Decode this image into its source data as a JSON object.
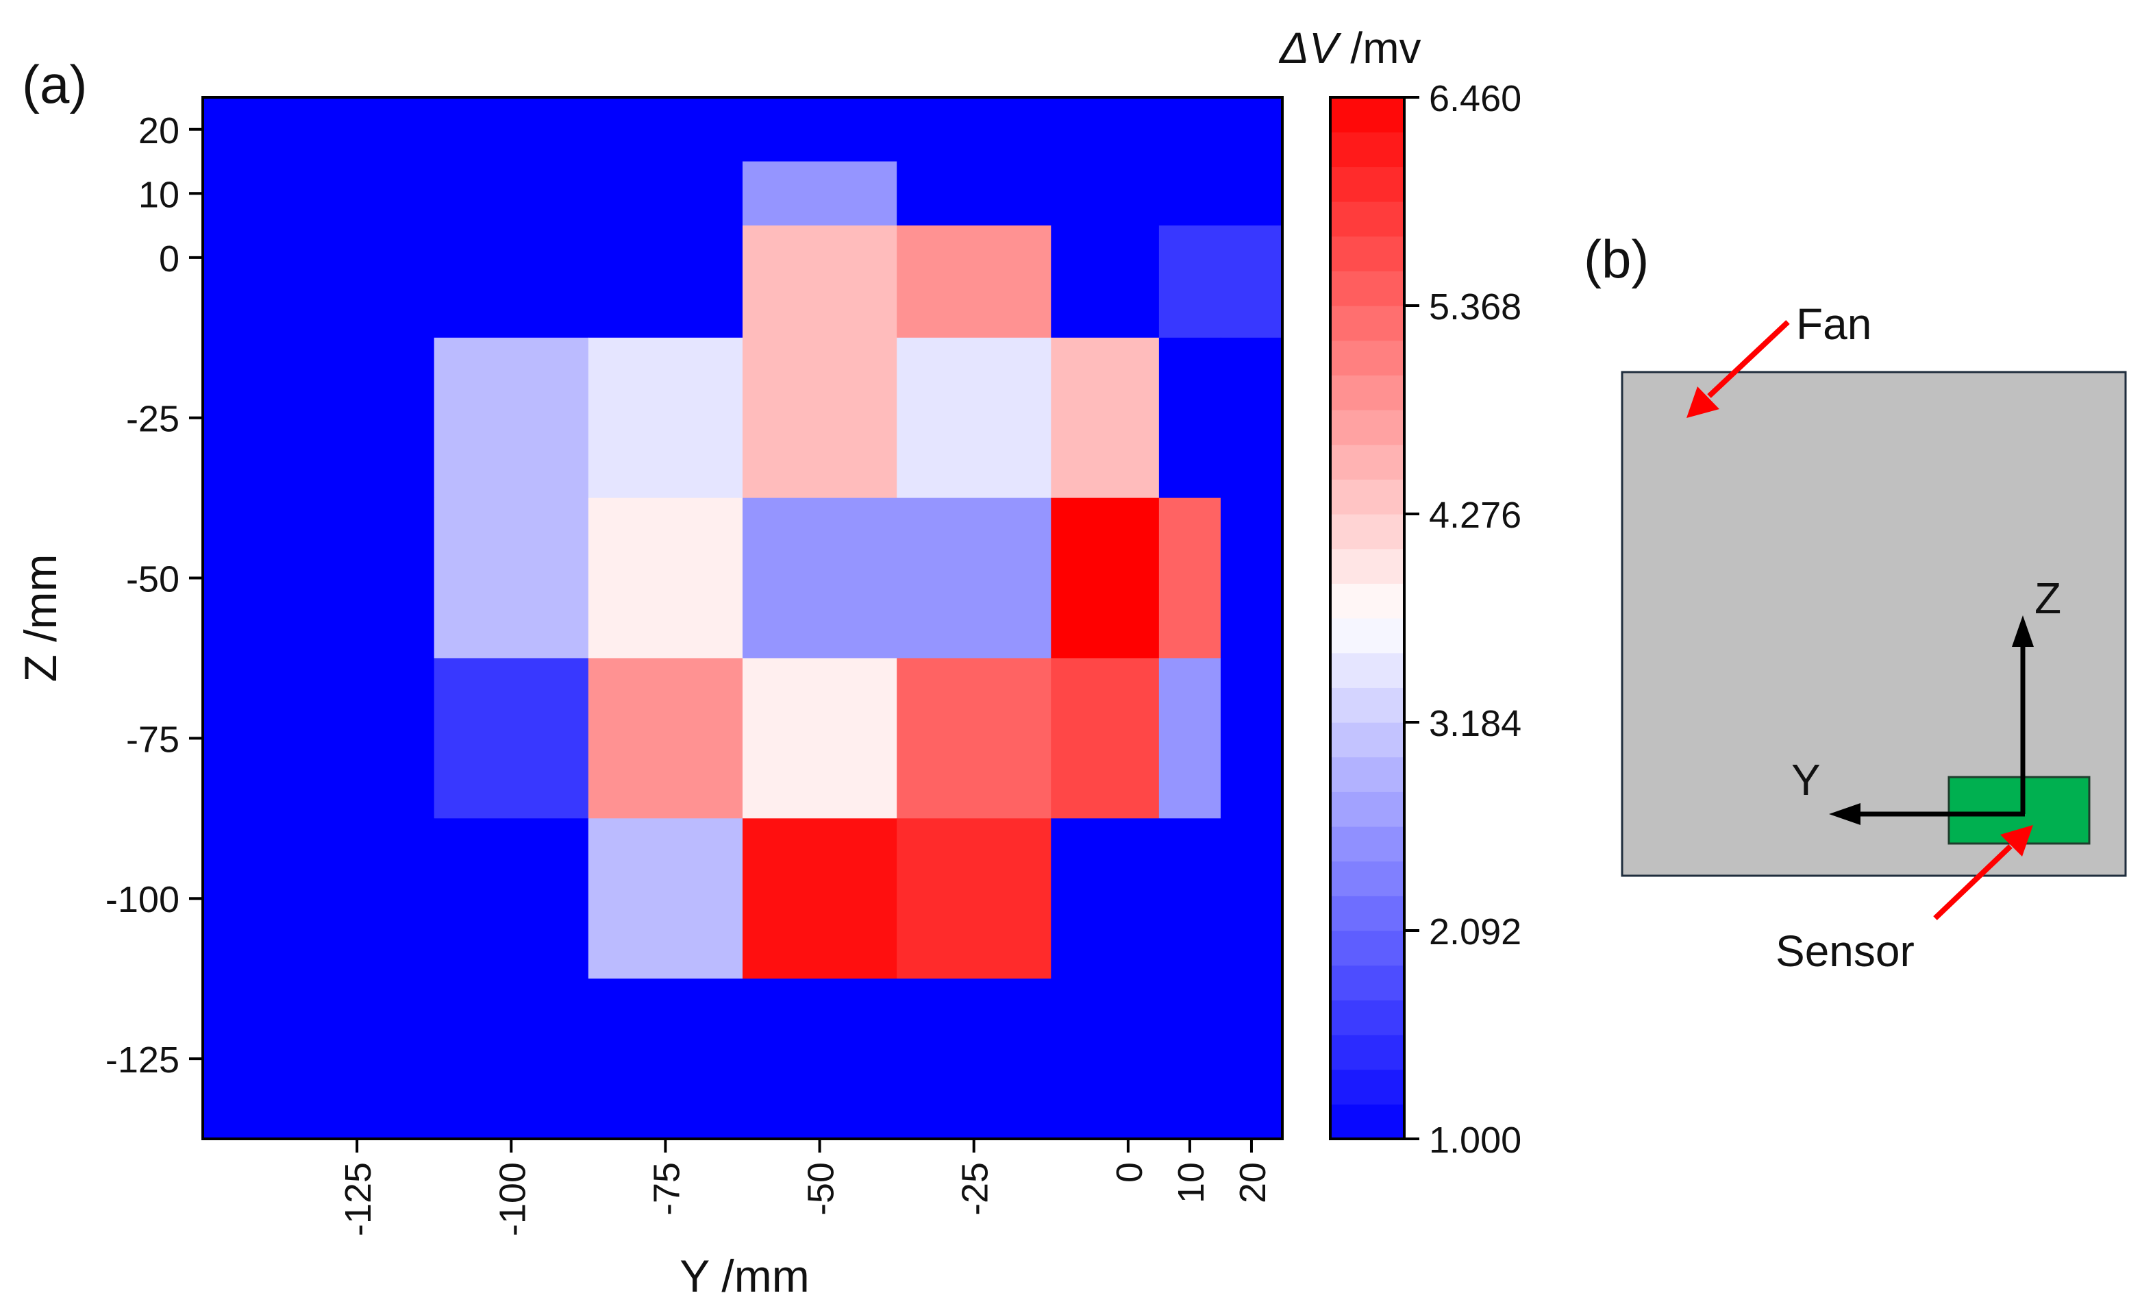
{
  "panel_a_label": "(a)",
  "panel_b_label": "(b)",
  "chart_data": {
    "type": "heatmap",
    "xlabel": "Y /mm",
    "ylabel": "Z /mm",
    "colorbar_label": "ΔV /mv",
    "colorbar_label_symbol": "ΔV",
    "colorbar_label_unit": " /mv",
    "xlim": [
      -150,
      25
    ],
    "ylim": [
      -137.5,
      25
    ],
    "x_ticks": [
      -125,
      -100,
      -75,
      -50,
      -25,
      0,
      10,
      20
    ],
    "x_tick_labels": [
      "-125",
      "-100",
      "-75",
      "-50",
      "-25",
      "0",
      "10",
      "20"
    ],
    "y_ticks": [
      20,
      10,
      0,
      -25,
      -50,
      -75,
      -100,
      -125
    ],
    "y_tick_labels": [
      "20",
      "10",
      "0",
      "-25",
      "-50",
      "-75",
      "-100",
      "-125"
    ],
    "x_edges": [
      -150,
      -112.5,
      -87.5,
      -62.5,
      -37.5,
      -12.5,
      5,
      15,
      25
    ],
    "z_edges": [
      25,
      15,
      5,
      -12.5,
      -37.5,
      -62.5,
      -87.5,
      -112.5,
      -137.5
    ],
    "values": [
      [
        1.0,
        1.0,
        0.9,
        1.0,
        1.0,
        1.0,
        1.0,
        1.0
      ],
      [
        1.0,
        1.0,
        1.0,
        2.6,
        1.0,
        1.0,
        1.0,
        0.9
      ],
      [
        1.0,
        1.0,
        1.0,
        4.45,
        4.9,
        1.0,
        1.6,
        1.6
      ],
      [
        1.0,
        3.0,
        3.45,
        4.45,
        3.45,
        4.45,
        1.0,
        1.0
      ],
      [
        1.0,
        3.0,
        3.9,
        2.6,
        2.6,
        6.46,
        5.4,
        1.0
      ],
      [
        1.0,
        1.6,
        4.9,
        3.9,
        5.4,
        5.7,
        2.6,
        1.0
      ],
      [
        1.0,
        0.9,
        3.0,
        6.3,
        6.0,
        1.0,
        1.0,
        0.9
      ],
      [
        1.0,
        1.0,
        1.0,
        1.0,
        1.0,
        1.0,
        1.0,
        1.0
      ]
    ],
    "colorbar": {
      "min": 1.0,
      "max": 6.46,
      "ticks": [
        1.0,
        2.092,
        3.184,
        4.276,
        5.368,
        6.46
      ],
      "tick_labels": [
        "1.000",
        "2.092",
        "3.184",
        "4.276",
        "5.368",
        "6.460"
      ],
      "steps": 30,
      "low_color": "#0000ff",
      "mid_color": "#ffffff",
      "high_color": "#ff0000"
    }
  },
  "schematic": {
    "fan_label": "Fan",
    "sensor_label": "Sensor",
    "z_axis_label": "Z",
    "y_axis_label": "Y",
    "box_color": "#c0c0c0",
    "sensor_color": "#00b050",
    "arrow_color": "#ff0000"
  }
}
